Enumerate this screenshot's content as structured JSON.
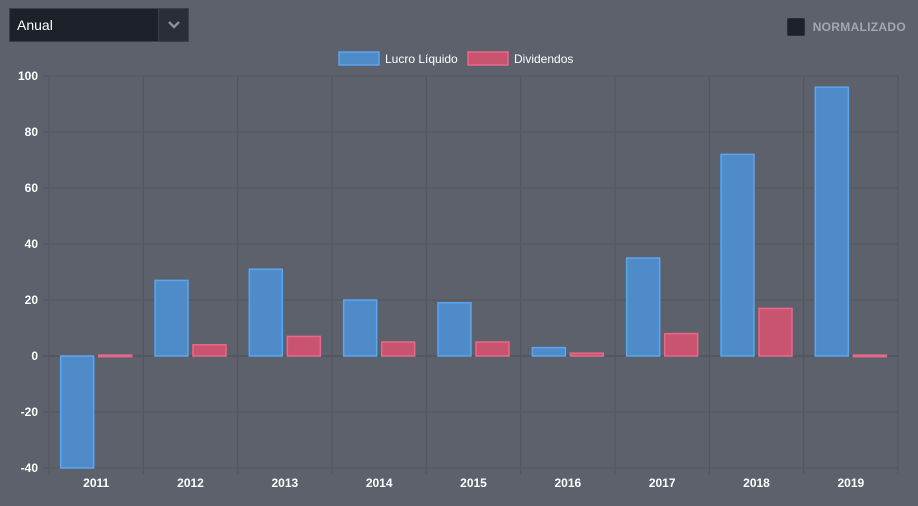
{
  "controls": {
    "period": "Anual",
    "normalize_label": "NORMALIZADO",
    "normalize_checked": false
  },
  "chart_data": {
    "type": "bar",
    "categories": [
      "2011",
      "2012",
      "2013",
      "2014",
      "2015",
      "2016",
      "2017",
      "2018",
      "2019"
    ],
    "series": [
      {
        "name": "Lucro Líquido",
        "color": "#4f8bc9",
        "border": "#5aa6f0",
        "values": [
          -40,
          27,
          31,
          20,
          19,
          3,
          35,
          72,
          96
        ]
      },
      {
        "name": "Dividendos",
        "color": "#c9546f",
        "border": "#e9688a",
        "values": [
          0.3,
          4,
          7,
          5,
          5,
          1,
          8,
          17,
          0.3
        ]
      }
    ],
    "ylim": [
      -40,
      100
    ],
    "yticks": [
      100,
      80,
      60,
      40,
      20,
      0,
      -20,
      -40
    ],
    "grid": true,
    "legend": "top-center"
  }
}
